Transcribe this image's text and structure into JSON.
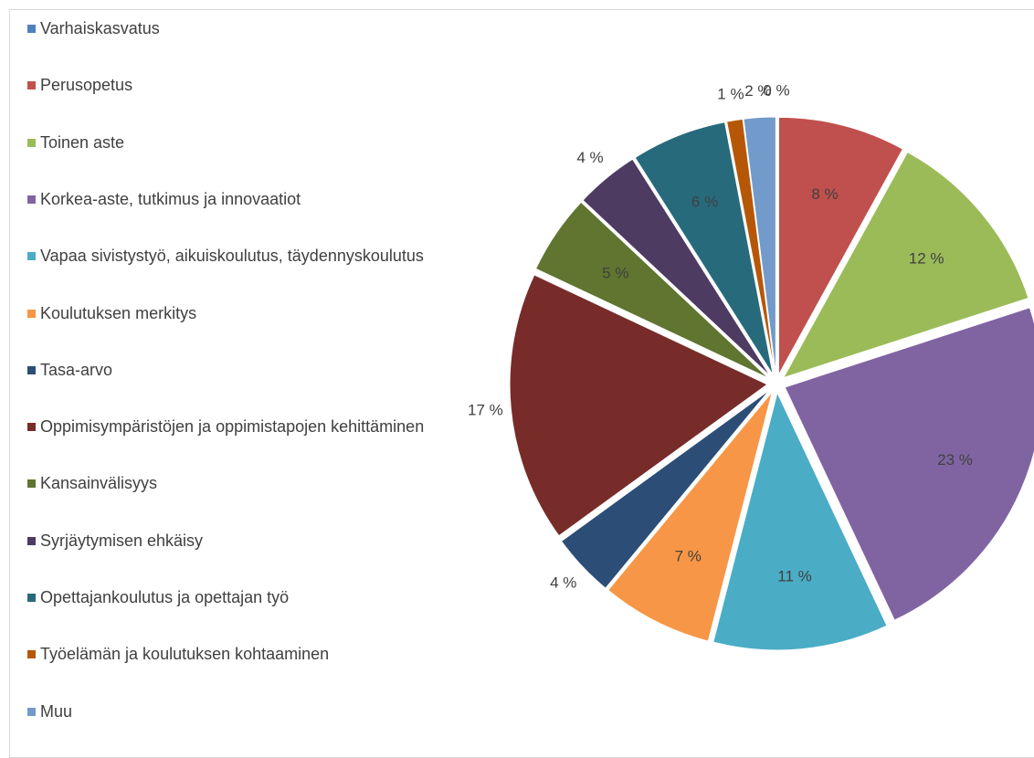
{
  "chart_data": {
    "type": "pie",
    "categories": [
      "Varhaiskasvatus",
      "Perusopetus",
      "Toinen aste",
      "Korkea-aste, tutkimus ja innovaatiot",
      "Vapaa sivistystyö, aikuiskoulutus, täydennyskoulutus",
      "Koulutuksen merkitys",
      "Tasa-arvo",
      "Oppimisympäristöjen ja oppimistapojen kehittäminen",
      "Kansainvälisyys",
      "Syrjäytymisen ehkäisy",
      "Opettajankoulutus ja opettajan työ",
      "Työelämän ja koulutuksen kohtaaminen",
      "Muu"
    ],
    "values": [
      0,
      8,
      12,
      23,
      11,
      7,
      4,
      17,
      5,
      4,
      6,
      1,
      2
    ],
    "value_labels": [
      "0 %",
      "8 %",
      "12 %",
      "23 %",
      "11 %",
      "7 %",
      "4 %",
      "17 %",
      "5 %",
      "4 %",
      "6 %",
      "1 %",
      "2 %"
    ],
    "colors": [
      "#4f81bd",
      "#c0504d",
      "#9bbb59",
      "#8064a2",
      "#4bacc6",
      "#f79646",
      "#2c4d75",
      "#772c2a",
      "#5f7530",
      "#4d3b62",
      "#276a7c",
      "#b65708",
      "#729aca"
    ],
    "legend": "left"
  }
}
